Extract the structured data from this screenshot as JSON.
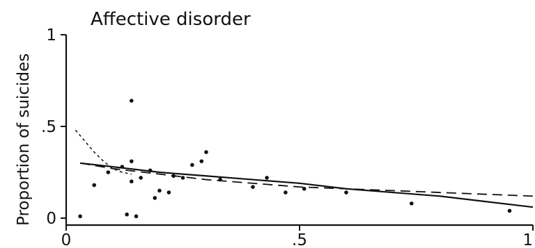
{
  "chart_data": {
    "type": "scatter",
    "title": "Affective disorder",
    "xlabel": "",
    "ylabel": "Proportion of suicides",
    "xlim": [
      0,
      1
    ],
    "ylim": [
      0,
      1
    ],
    "grid": false,
    "legend": "none",
    "x_ticks": [
      {
        "value": 0,
        "label": "0"
      },
      {
        "value": 0.5,
        "label": ".5"
      },
      {
        "value": 1,
        "label": "1"
      }
    ],
    "y_ticks": [
      {
        "value": 0,
        "label": "0"
      },
      {
        "value": 0.5,
        "label": ".5"
      },
      {
        "value": 1,
        "label": "1"
      }
    ],
    "points": [
      {
        "x": 0.03,
        "y": 0.01
      },
      {
        "x": 0.06,
        "y": 0.18
      },
      {
        "x": 0.09,
        "y": 0.25
      },
      {
        "x": 0.12,
        "y": 0.28
      },
      {
        "x": 0.13,
        "y": 0.02
      },
      {
        "x": 0.14,
        "y": 0.64
      },
      {
        "x": 0.14,
        "y": 0.31
      },
      {
        "x": 0.14,
        "y": 0.2
      },
      {
        "x": 0.15,
        "y": 0.01
      },
      {
        "x": 0.16,
        "y": 0.22
      },
      {
        "x": 0.18,
        "y": 0.26
      },
      {
        "x": 0.19,
        "y": 0.11
      },
      {
        "x": 0.2,
        "y": 0.15
      },
      {
        "x": 0.22,
        "y": 0.14
      },
      {
        "x": 0.23,
        "y": 0.23
      },
      {
        "x": 0.25,
        "y": 0.22
      },
      {
        "x": 0.27,
        "y": 0.29
      },
      {
        "x": 0.29,
        "y": 0.31
      },
      {
        "x": 0.3,
        "y": 0.36
      },
      {
        "x": 0.33,
        "y": 0.21
      },
      {
        "x": 0.4,
        "y": 0.17
      },
      {
        "x": 0.43,
        "y": 0.22
      },
      {
        "x": 0.47,
        "y": 0.14
      },
      {
        "x": 0.51,
        "y": 0.16
      },
      {
        "x": 0.6,
        "y": 0.14
      },
      {
        "x": 0.74,
        "y": 0.08
      },
      {
        "x": 0.95,
        "y": 0.04
      }
    ],
    "series": [
      {
        "values": [
          {
            "x": 0.03,
            "y": 0.3
          },
          {
            "x": 0.1,
            "y": 0.28
          },
          {
            "x": 0.2,
            "y": 0.25
          },
          {
            "x": 0.3,
            "y": 0.23
          },
          {
            "x": 0.4,
            "y": 0.21
          },
          {
            "x": 0.5,
            "y": 0.19
          },
          {
            "x": 0.6,
            "y": 0.16
          },
          {
            "x": 0.7,
            "y": 0.14
          },
          {
            "x": 0.8,
            "y": 0.12
          },
          {
            "x": 0.9,
            "y": 0.09
          },
          {
            "x": 1.0,
            "y": 0.06
          }
        ]
      },
      {
        "values": [
          {
            "x": 0.03,
            "y": 0.3
          },
          {
            "x": 0.1,
            "y": 0.27
          },
          {
            "x": 0.2,
            "y": 0.24
          },
          {
            "x": 0.3,
            "y": 0.21
          },
          {
            "x": 0.4,
            "y": 0.19
          },
          {
            "x": 0.5,
            "y": 0.17
          },
          {
            "x": 0.6,
            "y": 0.16
          },
          {
            "x": 0.7,
            "y": 0.15
          },
          {
            "x": 0.8,
            "y": 0.14
          },
          {
            "x": 0.9,
            "y": 0.13
          },
          {
            "x": 1.0,
            "y": 0.12
          }
        ]
      },
      {
        "values": [
          {
            "x": 0.02,
            "y": 0.48
          },
          {
            "x": 0.04,
            "y": 0.42
          },
          {
            "x": 0.06,
            "y": 0.36
          },
          {
            "x": 0.08,
            "y": 0.31
          },
          {
            "x": 0.1,
            "y": 0.27
          },
          {
            "x": 0.12,
            "y": 0.25
          },
          {
            "x": 0.14,
            "y": 0.24
          }
        ]
      }
    ]
  }
}
